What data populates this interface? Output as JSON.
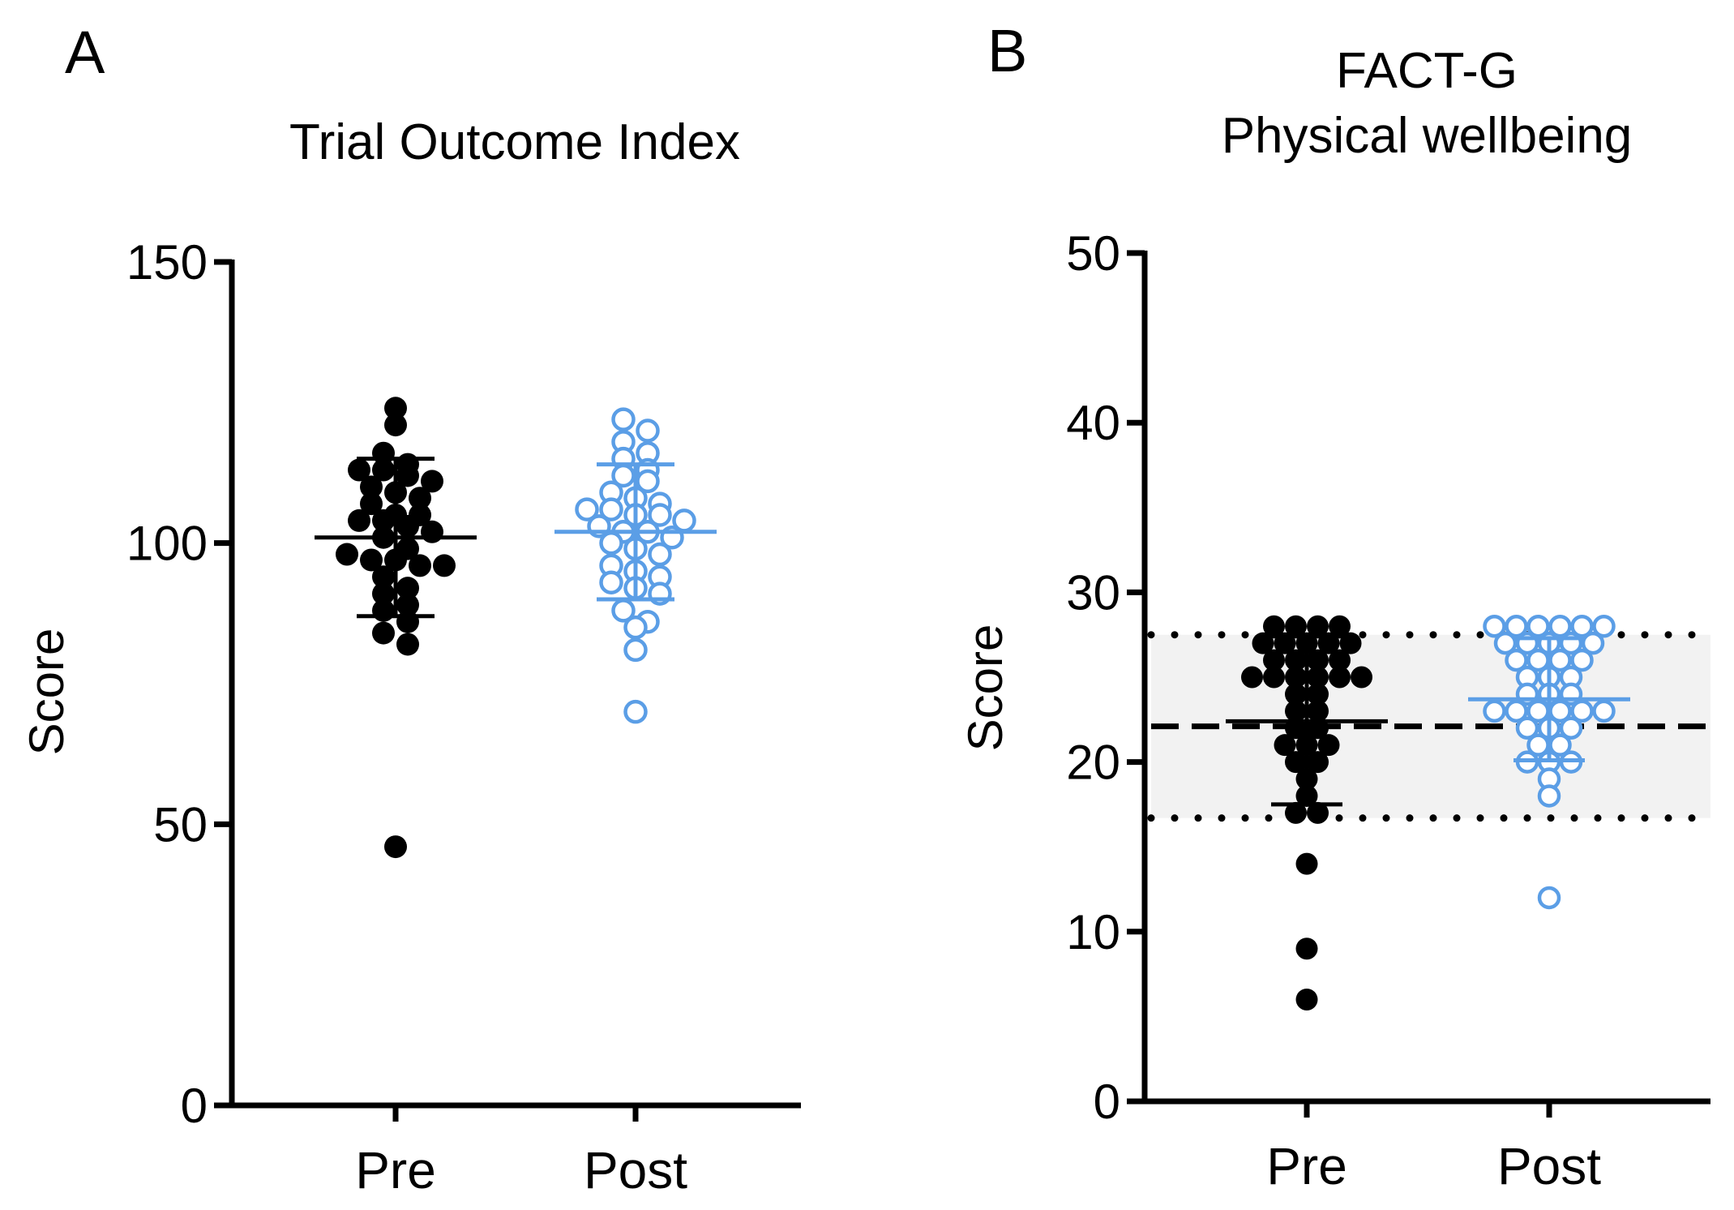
{
  "figure": {
    "panels": [
      "A",
      "B"
    ]
  },
  "colors": {
    "pre": "#000000",
    "post": "#5b9ee6",
    "axis": "#000000",
    "band": "#f2f2f2"
  },
  "chart_data": [
    {
      "type": "scatter",
      "panel": "A",
      "title": "Trial Outcome Index",
      "xlabel": "",
      "ylabel": "Score",
      "ylim": [
        0,
        150
      ],
      "yticks": [
        0,
        50,
        100,
        150
      ],
      "ytick_labels": [
        "0",
        "50",
        "100",
        "150"
      ],
      "categories": [
        "Pre",
        "Post"
      ],
      "series": [
        {
          "name": "Pre",
          "marker": "filled",
          "mean": 101,
          "sd_low": 87,
          "sd_high": 115,
          "values": [
            124,
            121,
            116,
            114,
            113,
            113,
            112,
            111,
            110,
            109,
            108,
            107,
            105,
            105,
            104,
            104,
            103,
            102,
            101,
            99,
            98,
            97,
            97,
            96,
            96,
            94,
            92,
            91,
            89,
            88,
            86,
            84,
            82,
            46
          ]
        },
        {
          "name": "Post",
          "marker": "open",
          "mean": 102,
          "sd_low": 90,
          "sd_high": 114,
          "values": [
            122,
            120,
            118,
            116,
            115,
            113,
            112,
            111,
            109,
            108,
            107,
            106,
            106,
            105,
            105,
            104,
            103,
            102,
            102,
            101,
            100,
            99,
            98,
            96,
            95,
            94,
            93,
            92,
            91,
            88,
            86,
            85,
            81,
            70
          ]
        }
      ]
    },
    {
      "type": "scatter",
      "panel": "B",
      "title": "FACT-G",
      "subtitle": "Physical wellbeing",
      "xlabel": "",
      "ylabel": "Score",
      "ylim": [
        0,
        50
      ],
      "yticks": [
        0,
        10,
        20,
        30,
        40,
        50
      ],
      "ytick_labels": [
        "0",
        "10",
        "20",
        "30",
        "40",
        "50"
      ],
      "categories": [
        "Pre",
        "Post"
      ],
      "reference": {
        "mean": 22.1,
        "band_low": 16.7,
        "band_high": 27.5
      },
      "series": [
        {
          "name": "Pre",
          "marker": "filled",
          "mean": 22.4,
          "sd_low": 17.5,
          "sd_high": 27.4,
          "values": [
            28,
            28,
            28,
            28,
            27,
            27,
            27,
            27,
            27,
            26,
            26,
            26,
            26,
            25,
            25,
            25,
            25,
            25,
            25,
            24,
            24,
            23,
            23,
            22,
            22,
            21,
            21,
            21,
            20,
            20,
            19,
            18,
            17,
            17,
            14,
            9,
            6
          ]
        },
        {
          "name": "Post",
          "marker": "open",
          "mean": 23.7,
          "sd_low": 20.1,
          "sd_high": 27.3,
          "values": [
            28,
            28,
            28,
            28,
            28,
            28,
            27,
            27,
            27,
            27,
            27,
            26,
            26,
            26,
            26,
            25,
            25,
            25,
            24,
            24,
            24,
            23,
            23,
            23,
            23,
            23,
            23,
            22,
            22,
            22,
            21,
            21,
            20,
            20,
            20,
            19,
            18,
            12
          ]
        }
      ]
    }
  ]
}
